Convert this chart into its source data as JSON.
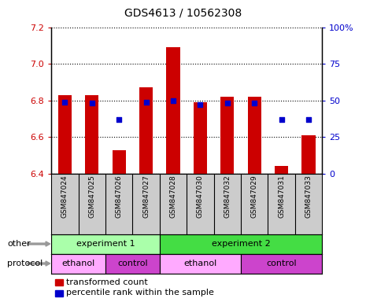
{
  "title": "GDS4613 / 10562308",
  "samples": [
    "GSM847024",
    "GSM847025",
    "GSM847026",
    "GSM847027",
    "GSM847028",
    "GSM847030",
    "GSM847032",
    "GSM847029",
    "GSM847031",
    "GSM847033"
  ],
  "bar_values": [
    6.83,
    6.83,
    6.53,
    6.87,
    7.09,
    6.79,
    6.82,
    6.82,
    6.44,
    6.61
  ],
  "bar_base": 6.4,
  "percentile_values": [
    49,
    48,
    37,
    49,
    50,
    47,
    48,
    48,
    37,
    37
  ],
  "ylim_left": [
    6.4,
    7.2
  ],
  "ylim_right": [
    0,
    100
  ],
  "yticks_left": [
    6.4,
    6.6,
    6.8,
    7.0,
    7.2
  ],
  "yticks_right": [
    0,
    25,
    50,
    75,
    100
  ],
  "ytick_labels_right": [
    "0",
    "25",
    "50",
    "75",
    "100%"
  ],
  "bar_color": "#cc0000",
  "dot_color": "#0000cc",
  "other_row": [
    {
      "label": "experiment 1",
      "start": 0,
      "end": 4,
      "color": "#aaffaa"
    },
    {
      "label": "experiment 2",
      "start": 4,
      "end": 10,
      "color": "#44dd44"
    }
  ],
  "protocol_row": [
    {
      "label": "ethanol",
      "start": 0,
      "end": 2,
      "color": "#ffaaff"
    },
    {
      "label": "control",
      "start": 2,
      "end": 4,
      "color": "#cc44cc"
    },
    {
      "label": "ethanol",
      "start": 4,
      "end": 7,
      "color": "#ffaaff"
    },
    {
      "label": "control",
      "start": 7,
      "end": 10,
      "color": "#cc44cc"
    }
  ],
  "legend_bar_label": "transformed count",
  "legend_dot_label": "percentile rank within the sample",
  "xlabel_other": "other",
  "xlabel_protocol": "protocol",
  "tick_label_color_left": "#cc0000",
  "tick_label_color_right": "#0000cc",
  "sample_bg_color": "#cccccc",
  "arrow_color": "#999999"
}
